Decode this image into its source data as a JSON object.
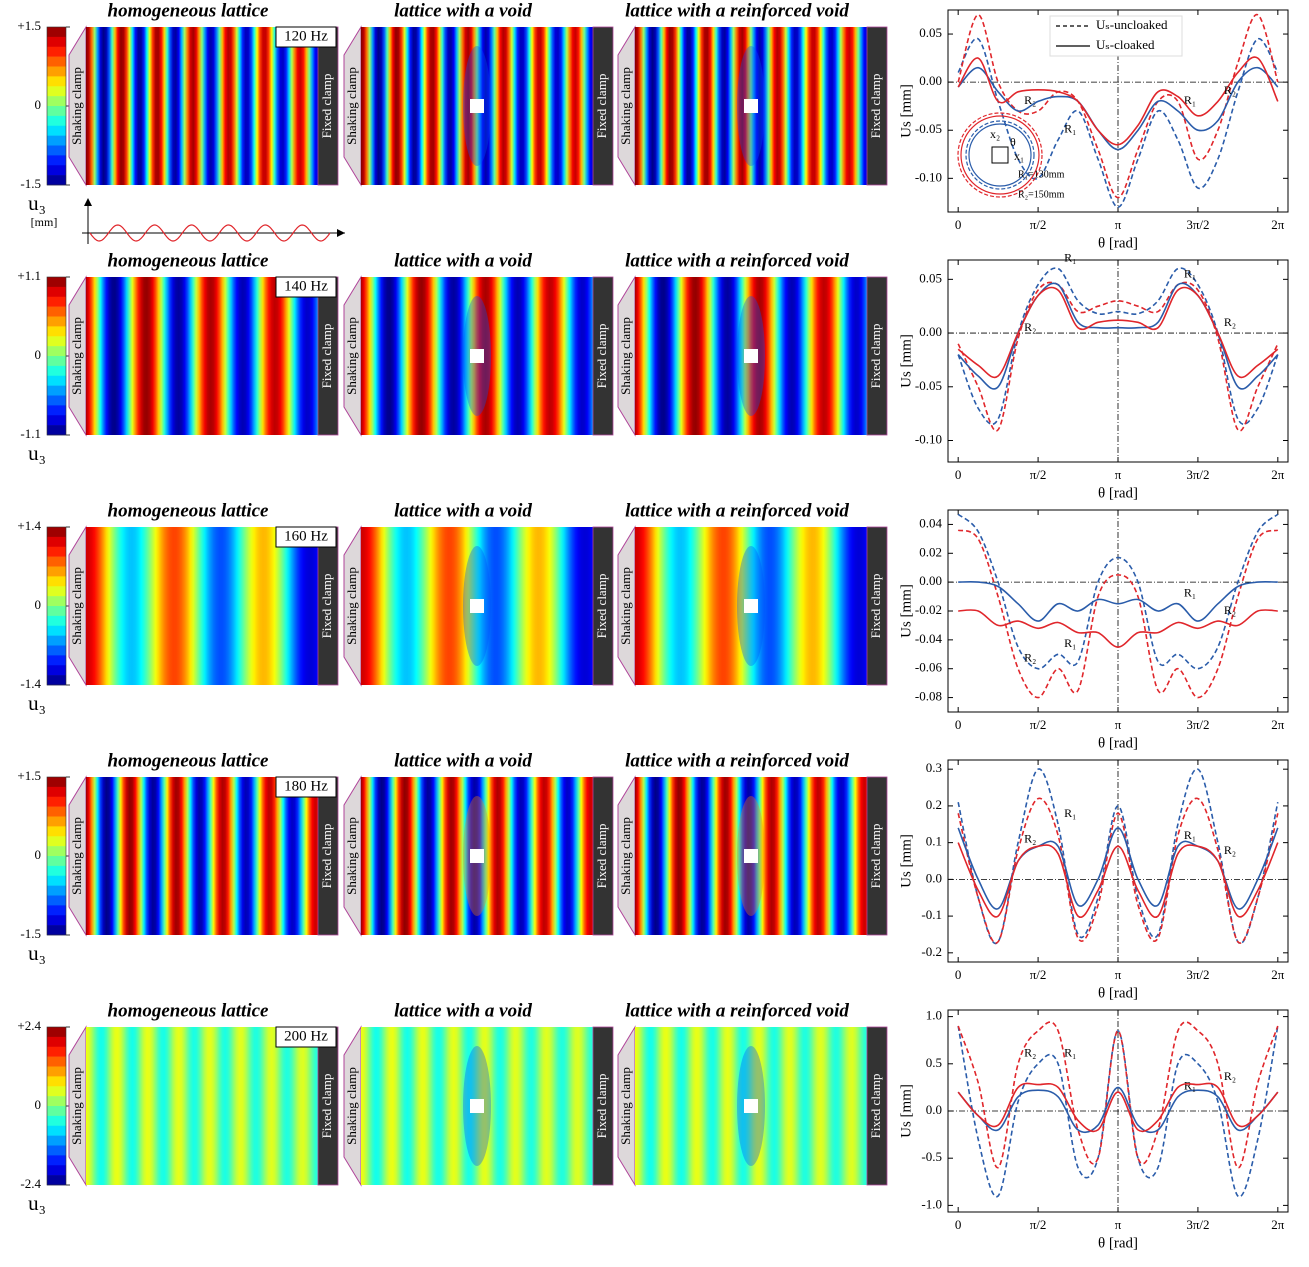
{
  "rows": [
    {
      "frequency": "120 Hz",
      "panels": [
        "homogeneous lattice",
        "lattice with a void",
        "lattice with a reinforced void"
      ],
      "clamps": [
        "Shaking clamp",
        "Fixed clamp"
      ],
      "colorbar": {
        "label": "u₃",
        "unit": "[mm]",
        "clim": [
          -1.5,
          1.5
        ],
        "ticks": [
          {
            "value": 1.5,
            "label": "+1.5"
          },
          0,
          -1.5
        ]
      }
    },
    {
      "frequency": "140 Hz",
      "panels": [
        "homogeneous lattice",
        "lattice with a void",
        "lattice with a reinforced void"
      ],
      "clamps": [
        "Shaking clamp",
        "Fixed clamp"
      ],
      "colorbar": {
        "label": "u₃",
        "clim": [
          -1.1,
          1.1
        ],
        "ticks": [
          {
            "value": 1.1,
            "label": "+1.1"
          },
          0,
          -1.1
        ]
      }
    },
    {
      "frequency": "160 Hz",
      "panels": [
        "homogeneous lattice",
        "lattice with a void",
        "lattice with a reinforced void"
      ],
      "clamps": [
        "Shaking clamp",
        "Fixed clamp"
      ],
      "colorbar": {
        "label": "u₃",
        "clim": [
          -1.4,
          1.4
        ],
        "ticks": [
          {
            "value": 1.4,
            "label": "+1.4"
          },
          0,
          -1.4
        ]
      }
    },
    {
      "frequency": "180 Hz",
      "panels": [
        "homogeneous lattice",
        "lattice with a void",
        "lattice with a reinforced void"
      ],
      "clamps": [
        "Shaking clamp",
        "Fixed clamp"
      ],
      "colorbar": {
        "label": "u₃",
        "clim": [
          -1.5,
          1.5
        ],
        "ticks": [
          {
            "value": 1.5,
            "label": "+1.5"
          },
          0,
          -1.5
        ]
      }
    },
    {
      "frequency": "200 Hz",
      "panels": [
        "homogeneous lattice",
        "lattice with a void",
        "lattice with a reinforced void"
      ],
      "clamps": [
        "Shaking clamp",
        "Fixed clamp"
      ],
      "colorbar": {
        "label": "u₃",
        "clim": [
          -2.4,
          2.4
        ],
        "ticks": [
          {
            "value": 2.4,
            "label": "+2.4"
          },
          0,
          -2.4
        ]
      }
    }
  ],
  "chart_data": [
    {
      "type": "line",
      "xlabel": "θ [rad]",
      "ylabel": "Us [mm]",
      "x": [
        0,
        0.3927,
        0.7854,
        1.1781,
        1.5708,
        1.9635,
        2.3562,
        2.7489,
        3.1416,
        3.5343,
        3.927,
        4.3197,
        4.7124,
        5.1051,
        5.4978,
        5.8905,
        6.2832
      ],
      "xlim": [
        -0.2,
        6.4832
      ],
      "xticks": [
        0,
        {
          "value": 1.5708,
          "label": "π/2"
        },
        {
          "value": 3.1416,
          "label": "π"
        },
        {
          "value": 4.7124,
          "label": "3π/2"
        },
        {
          "value": 6.2832,
          "label": "2π"
        }
      ],
      "ylim": [
        -0.135,
        0.075
      ],
      "yticks": [
        0.05,
        {
          "value": 0,
          "label": "0.00"
        },
        -0.05,
        {
          "value": -0.1,
          "label": "-0.10"
        }
      ],
      "legend": [
        "Uₛ-uncloaked",
        "Uₛ-cloaked"
      ],
      "inset": [
        "x₂",
        "θ",
        "x₁",
        "R₁=130mm",
        "R₂=150mm"
      ],
      "series": [
        {
          "name": "R₁",
          "color": "#2a5caa",
          "dashed": true,
          "values": [
            0.01,
            0.045,
            -0.02,
            -0.08,
            -0.1,
            -0.06,
            -0.03,
            -0.08,
            -0.13,
            -0.08,
            -0.03,
            -0.06,
            -0.11,
            -0.08,
            -0.01,
            0.045,
            0.01
          ]
        },
        {
          "name": "R₂",
          "color": "#e0262b",
          "dashed": true,
          "values": [
            0.0,
            0.07,
            0.0,
            -0.03,
            -0.03,
            -0.01,
            -0.02,
            -0.07,
            -0.12,
            -0.07,
            -0.02,
            -0.02,
            -0.08,
            -0.05,
            0.02,
            0.07,
            0.0
          ]
        },
        {
          "name": "R₁",
          "color": "#2a5caa",
          "dashed": false,
          "values": [
            -0.005,
            0.015,
            -0.01,
            -0.03,
            -0.02,
            -0.015,
            -0.02,
            -0.05,
            -0.07,
            -0.05,
            -0.02,
            -0.03,
            -0.05,
            -0.04,
            0.0,
            0.015,
            -0.005
          ]
        },
        {
          "name": "R₂",
          "color": "#e0262b",
          "dashed": false,
          "values": [
            -0.005,
            0.025,
            -0.02,
            -0.01,
            -0.008,
            -0.01,
            -0.02,
            -0.05,
            -0.065,
            -0.045,
            -0.01,
            -0.015,
            -0.035,
            -0.02,
            0.01,
            0.025,
            -0.02
          ]
        }
      ]
    },
    {
      "type": "line",
      "xlabel": "θ [rad]",
      "ylabel": "Us [mm]",
      "x": [
        0,
        0.3927,
        0.7854,
        1.1781,
        1.5708,
        1.9635,
        2.3562,
        2.7489,
        3.1416,
        3.5343,
        3.927,
        4.3197,
        4.7124,
        5.1051,
        5.4978,
        5.8905,
        6.2832
      ],
      "xlim": [
        -0.2,
        6.4832
      ],
      "xticks": [
        0,
        {
          "value": 1.5708,
          "label": "π/2"
        },
        {
          "value": 3.1416,
          "label": "π"
        },
        {
          "value": 4.7124,
          "label": "3π/2"
        },
        {
          "value": 6.2832,
          "label": "2π"
        }
      ],
      "ylim": [
        -0.12,
        0.068
      ],
      "yticks": [
        0.05,
        {
          "value": 0,
          "label": "0.00"
        },
        -0.05,
        {
          "value": -0.1,
          "label": "-0.10"
        }
      ],
      "series": [
        {
          "name": "R₁",
          "color": "#2a5caa",
          "dashed": true,
          "values": [
            -0.02,
            -0.07,
            -0.08,
            0.0,
            0.045,
            0.06,
            0.03,
            0.018,
            0.02,
            0.018,
            0.03,
            0.06,
            0.045,
            0.0,
            -0.08,
            -0.07,
            -0.02
          ]
        },
        {
          "name": "R₂",
          "color": "#e0262b",
          "dashed": true,
          "values": [
            -0.01,
            -0.05,
            -0.09,
            -0.005,
            0.04,
            0.045,
            0.02,
            0.025,
            0.03,
            0.025,
            0.02,
            0.045,
            0.04,
            -0.005,
            -0.09,
            -0.05,
            -0.01
          ]
        },
        {
          "name": "R₁",
          "color": "#2a5caa",
          "dashed": false,
          "values": [
            -0.02,
            -0.04,
            -0.05,
            0.0,
            0.035,
            0.045,
            0.01,
            0.005,
            0.005,
            0.005,
            0.01,
            0.045,
            0.035,
            0.0,
            -0.05,
            -0.04,
            -0.02
          ]
        },
        {
          "name": "R₂",
          "color": "#e0262b",
          "dashed": false,
          "values": [
            -0.015,
            -0.03,
            -0.04,
            0.0,
            0.035,
            0.04,
            0.005,
            0.01,
            0.012,
            0.01,
            0.005,
            0.04,
            0.035,
            0.0,
            -0.04,
            -0.03,
            -0.015
          ]
        }
      ]
    },
    {
      "type": "line",
      "xlabel": "θ [rad]",
      "ylabel": "Us [mm]",
      "x": [
        0,
        0.3927,
        0.7854,
        1.1781,
        1.5708,
        1.9635,
        2.3562,
        2.7489,
        3.1416,
        3.5343,
        3.927,
        4.3197,
        4.7124,
        5.1051,
        5.4978,
        5.8905,
        6.2832
      ],
      "xlim": [
        -0.2,
        6.4832
      ],
      "xticks": [
        0,
        {
          "value": 1.5708,
          "label": "π/2"
        },
        {
          "value": 3.1416,
          "label": "π"
        },
        {
          "value": 4.7124,
          "label": "3π/2"
        },
        {
          "value": 6.2832,
          "label": "2π"
        }
      ],
      "ylim": [
        -0.09,
        0.05
      ],
      "yticks": [
        0.04,
        0.02,
        {
          "value": 0,
          "label": "0.00"
        },
        -0.02,
        -0.04,
        -0.06,
        -0.08
      ],
      "series": [
        {
          "name": "R₁",
          "color": "#2a5caa",
          "dashed": true,
          "values": [
            0.047,
            0.035,
            0.0,
            -0.045,
            -0.06,
            -0.05,
            -0.055,
            0.0,
            0.017,
            0.0,
            -0.055,
            -0.05,
            -0.06,
            -0.045,
            0.0,
            0.035,
            0.047
          ]
        },
        {
          "name": "R₂",
          "color": "#e0262b",
          "dashed": true,
          "values": [
            0.036,
            0.03,
            -0.01,
            -0.06,
            -0.08,
            -0.06,
            -0.075,
            -0.01,
            0.005,
            -0.01,
            -0.075,
            -0.06,
            -0.08,
            -0.06,
            -0.01,
            0.03,
            0.036
          ]
        },
        {
          "name": "R₁",
          "color": "#2a5caa",
          "dashed": false,
          "values": [
            0.0,
            0.0,
            -0.003,
            -0.015,
            -0.027,
            -0.015,
            -0.02,
            -0.012,
            -0.015,
            -0.012,
            -0.02,
            -0.015,
            -0.027,
            -0.015,
            -0.003,
            0.0,
            0.0
          ]
        },
        {
          "name": "R₂",
          "color": "#e0262b",
          "dashed": false,
          "values": [
            -0.02,
            -0.02,
            -0.03,
            -0.027,
            -0.032,
            -0.028,
            -0.035,
            -0.035,
            -0.045,
            -0.035,
            -0.035,
            -0.028,
            -0.032,
            -0.027,
            -0.03,
            -0.02,
            -0.02
          ]
        }
      ]
    },
    {
      "type": "line",
      "xlabel": "θ [rad]",
      "ylabel": "Us [mm]",
      "x": [
        0,
        0.3927,
        0.7854,
        1.1781,
        1.5708,
        1.9635,
        2.3562,
        2.7489,
        3.1416,
        3.5343,
        3.927,
        4.3197,
        4.7124,
        5.1051,
        5.4978,
        5.8905,
        6.2832
      ],
      "xlim": [
        -0.2,
        6.4832
      ],
      "xticks": [
        0,
        {
          "value": 1.5708,
          "label": "π/2"
        },
        {
          "value": 3.1416,
          "label": "π"
        },
        {
          "value": 4.7124,
          "label": "3π/2"
        },
        {
          "value": 6.2832,
          "label": "2π"
        }
      ],
      "ylim": [
        -0.225,
        0.325
      ],
      "yticks": [
        0.3,
        0.2,
        0.1,
        {
          "value": 0,
          "label": "0.0"
        },
        -0.1,
        -0.2
      ],
      "series": [
        {
          "name": "R₁",
          "color": "#2a5caa",
          "dashed": true,
          "values": [
            0.21,
            -0.05,
            -0.17,
            0.1,
            0.3,
            0.15,
            -0.15,
            -0.05,
            0.2,
            -0.05,
            -0.15,
            0.15,
            0.3,
            0.1,
            -0.17,
            -0.05,
            0.21
          ]
        },
        {
          "name": "R₂",
          "color": "#e0262b",
          "dashed": true,
          "values": [
            0.18,
            -0.05,
            -0.17,
            0.08,
            0.22,
            0.12,
            -0.16,
            -0.07,
            0.18,
            -0.07,
            -0.16,
            0.12,
            0.22,
            0.08,
            -0.17,
            -0.05,
            0.18
          ]
        },
        {
          "name": "R₁",
          "color": "#2a5caa",
          "dashed": false,
          "values": [
            0.14,
            0.0,
            -0.08,
            0.05,
            0.09,
            0.09,
            -0.07,
            0.0,
            0.14,
            0.0,
            -0.07,
            0.09,
            0.09,
            0.05,
            -0.08,
            0.0,
            0.14
          ]
        },
        {
          "name": "R₂",
          "color": "#e0262b",
          "dashed": false,
          "values": [
            0.1,
            -0.03,
            -0.1,
            0.05,
            0.09,
            0.07,
            -0.1,
            -0.03,
            0.09,
            -0.03,
            -0.1,
            0.07,
            0.09,
            0.05,
            -0.1,
            -0.03,
            0.1
          ]
        }
      ]
    },
    {
      "type": "line",
      "xlabel": "θ [rad]",
      "ylabel": "Us [mm]",
      "x": [
        0,
        0.3927,
        0.7854,
        1.1781,
        1.5708,
        1.9635,
        2.3562,
        2.7489,
        3.1416,
        3.5343,
        3.927,
        4.3197,
        4.7124,
        5.1051,
        5.4978,
        5.8905,
        6.2832
      ],
      "xlim": [
        -0.2,
        6.4832
      ],
      "xticks": [
        0,
        {
          "value": 1.5708,
          "label": "π/2"
        },
        {
          "value": 3.1416,
          "label": "π"
        },
        {
          "value": 4.7124,
          "label": "3π/2"
        },
        {
          "value": 6.2832,
          "label": "2π"
        }
      ],
      "ylim": [
        -1.07,
        1.07
      ],
      "yticks": [
        {
          "value": 1,
          "label": "1.0"
        },
        0.5,
        {
          "value": 0,
          "label": "0.0"
        },
        -0.5,
        {
          "value": -1,
          "label": "-1.0"
        }
      ],
      "series": [
        {
          "name": "R₁",
          "color": "#2a5caa",
          "dashed": true,
          "values": [
            0.9,
            -0.3,
            -0.9,
            0.1,
            0.5,
            0.5,
            -0.6,
            -0.5,
            0.85,
            -0.5,
            -0.6,
            0.5,
            0.5,
            0.1,
            -0.9,
            -0.3,
            0.9
          ]
        },
        {
          "name": "R₂",
          "color": "#e0262b",
          "dashed": true,
          "values": [
            0.9,
            0.3,
            -0.6,
            0.5,
            0.85,
            0.85,
            -0.2,
            -0.5,
            0.85,
            -0.5,
            -0.2,
            0.85,
            0.85,
            0.5,
            -0.6,
            0.3,
            0.9
          ]
        },
        {
          "name": "R₁",
          "color": "#2a5caa",
          "dashed": false,
          "values": [
            0.2,
            -0.05,
            -0.2,
            0.15,
            0.22,
            0.15,
            -0.2,
            -0.15,
            0.25,
            -0.15,
            -0.2,
            0.15,
            0.22,
            0.15,
            -0.2,
            -0.05,
            0.2
          ]
        },
        {
          "name": "R₂",
          "color": "#e0262b",
          "dashed": false,
          "values": [
            0.2,
            -0.05,
            -0.15,
            0.25,
            0.28,
            0.25,
            -0.1,
            -0.2,
            0.2,
            -0.2,
            -0.1,
            0.25,
            0.28,
            0.25,
            -0.15,
            -0.05,
            0.2
          ]
        }
      ]
    }
  ]
}
